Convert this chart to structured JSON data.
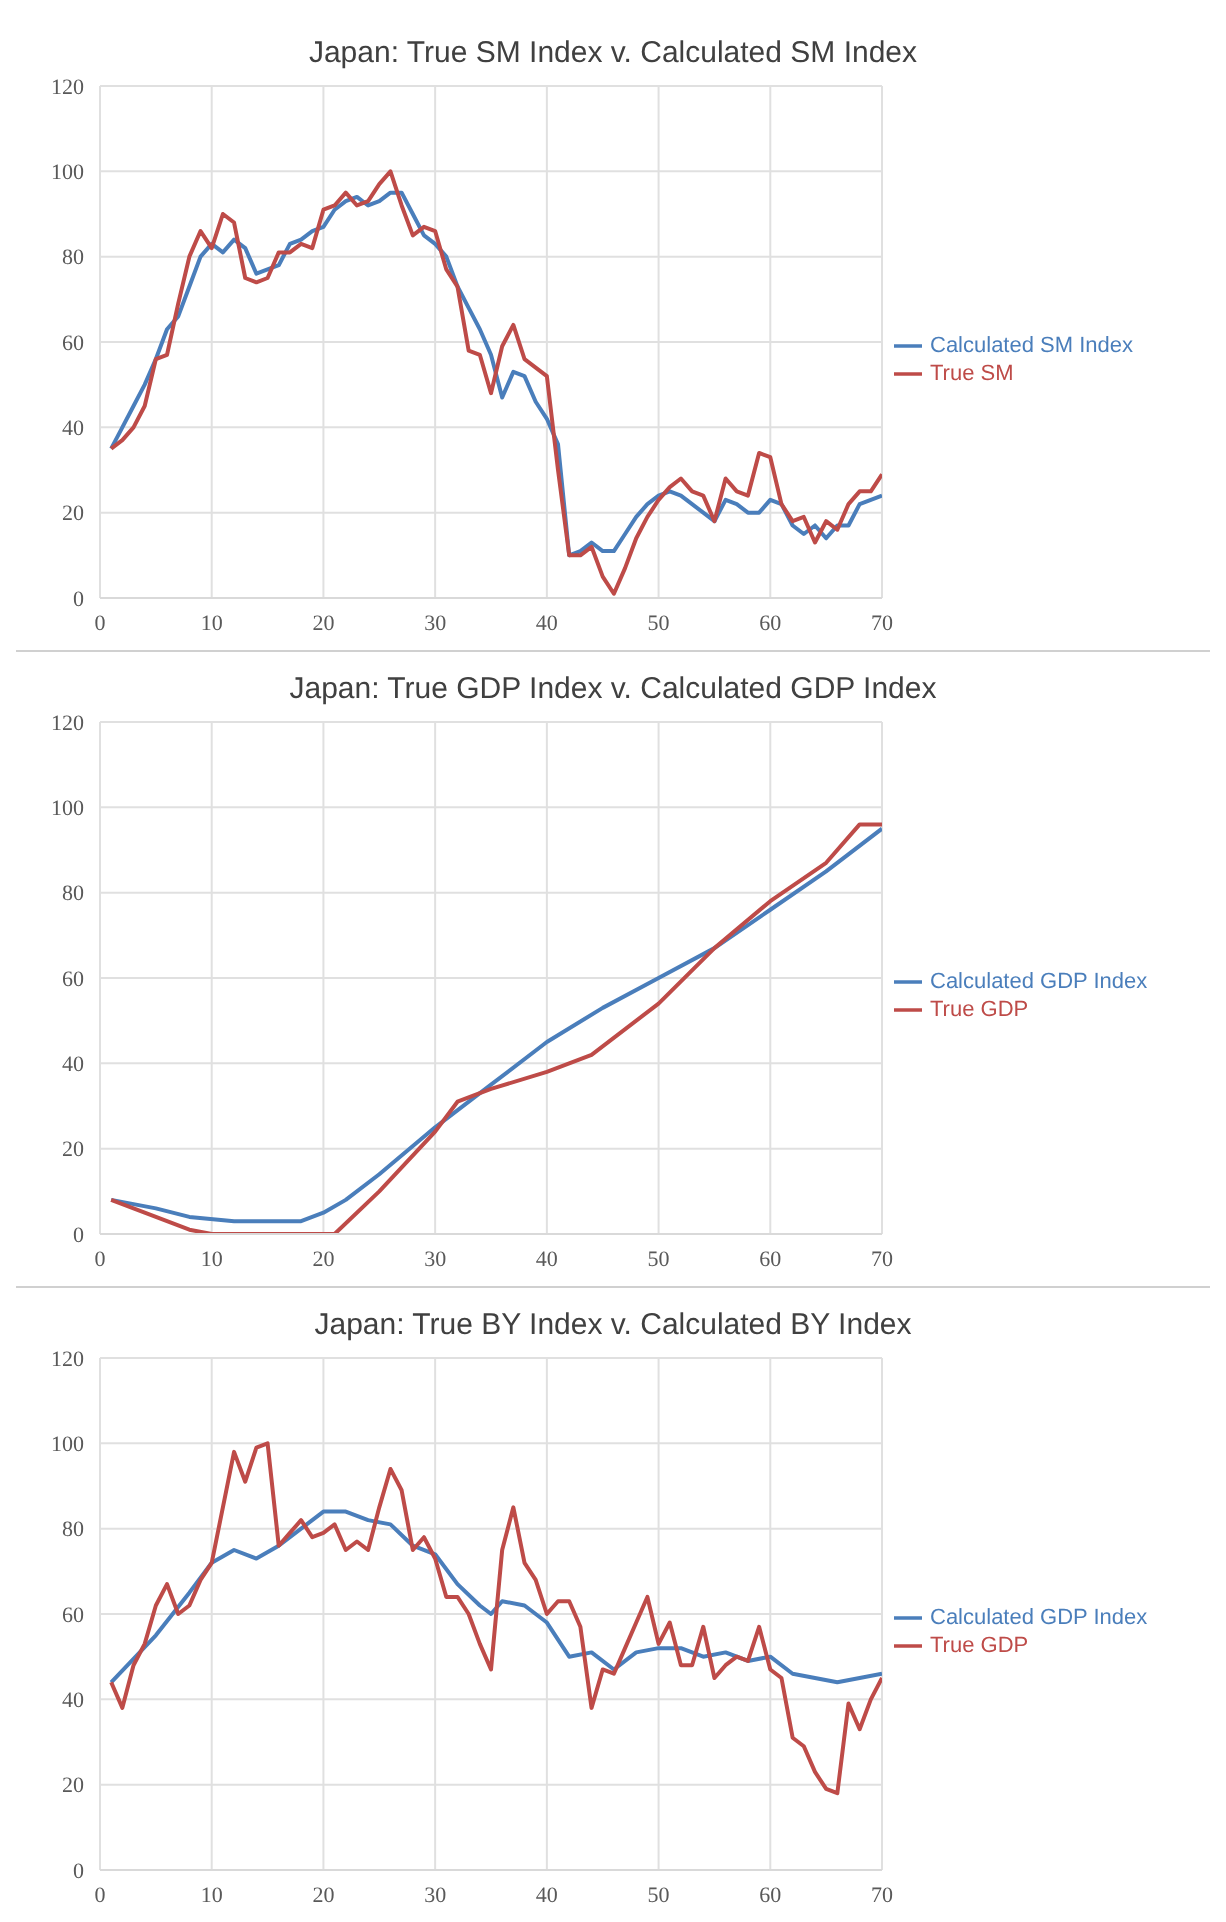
{
  "chart_data": [
    {
      "type": "line",
      "title": "Japan: True SM Index v. Calculated SM Index",
      "xlim": [
        0,
        70
      ],
      "xticks": [
        0,
        10,
        20,
        30,
        40,
        50,
        60,
        70
      ],
      "ylim": [
        0,
        120
      ],
      "yticks": [
        0,
        20,
        40,
        60,
        80,
        100,
        120
      ],
      "grid": true,
      "legend": "right",
      "marker": "none",
      "line_style": "solid",
      "x": [
        1,
        2,
        3,
        4,
        5,
        6,
        7,
        8,
        9,
        10,
        11,
        12,
        13,
        14,
        15,
        16,
        17,
        18,
        19,
        20,
        21,
        22,
        23,
        24,
        25,
        26,
        27,
        28,
        29,
        30,
        31,
        32,
        33,
        34,
        35,
        36,
        37,
        38,
        39,
        40,
        41,
        42,
        43,
        44,
        45,
        46,
        47,
        48,
        49,
        50,
        51,
        52,
        53,
        54,
        55,
        56,
        57,
        58,
        59,
        60,
        61,
        62,
        63,
        64,
        65,
        66,
        67,
        68,
        69,
        70
      ],
      "series": [
        {
          "name": "Calculated SM Index",
          "color": "#4a7ebb",
          "values": [
            35,
            40,
            45,
            50,
            56,
            63,
            66,
            73,
            80,
            83,
            81,
            84,
            82,
            76,
            77,
            78,
            83,
            84,
            86,
            87,
            91,
            93,
            94,
            92,
            93,
            95,
            95,
            90,
            85,
            83,
            80,
            73,
            68,
            63,
            57,
            47,
            53,
            52,
            46,
            42,
            36,
            10,
            11,
            13,
            11,
            11,
            15,
            19,
            22,
            24,
            25,
            24,
            22,
            20,
            18,
            23,
            22,
            20,
            20,
            23,
            22,
            17,
            15,
            17,
            14,
            17,
            17,
            22,
            23,
            24
          ]
        },
        {
          "name": "True SM",
          "color": "#be4b48",
          "values": [
            35,
            37,
            40,
            45,
            56,
            57,
            69,
            80,
            86,
            82,
            90,
            88,
            75,
            74,
            75,
            81,
            81,
            83,
            82,
            91,
            92,
            95,
            92,
            93,
            97,
            100,
            92,
            85,
            87,
            86,
            77,
            73,
            58,
            57,
            48,
            59,
            64,
            56,
            54,
            52,
            30,
            10,
            10,
            12,
            5,
            1,
            7,
            14,
            19,
            23,
            26,
            28,
            25,
            24,
            18,
            28,
            25,
            24,
            34,
            33,
            22,
            18,
            19,
            13,
            18,
            16,
            22,
            25,
            25,
            29
          ]
        }
      ]
    },
    {
      "type": "line",
      "title": "Japan: True GDP Index v. Calculated GDP Index",
      "xlim": [
        0,
        70
      ],
      "xticks": [
        0,
        10,
        20,
        30,
        40,
        50,
        60,
        70
      ],
      "ylim": [
        0,
        120
      ],
      "yticks": [
        0,
        20,
        40,
        60,
        80,
        100,
        120
      ],
      "grid": true,
      "legend": "right",
      "marker": "none",
      "line_style": "solid",
      "series": [
        {
          "name": "Calculated GDP Index",
          "color": "#4a7ebb",
          "x": [
            1,
            5,
            8,
            12,
            15,
            18,
            20,
            22,
            25,
            30,
            35,
            40,
            45,
            50,
            55,
            60,
            65,
            70
          ],
          "values": [
            8,
            6,
            4,
            3,
            3,
            3,
            5,
            8,
            14,
            25,
            35,
            45,
            53,
            60,
            67,
            76,
            85,
            95
          ]
        },
        {
          "name": "True GDP",
          "color": "#be4b48",
          "x": [
            1,
            4,
            8,
            10,
            15,
            20,
            21,
            25,
            30,
            32,
            35,
            40,
            44,
            50,
            55,
            60,
            65,
            68,
            70
          ],
          "values": [
            8,
            5,
            1,
            0,
            0,
            0,
            0,
            10,
            24,
            31,
            34,
            38,
            42,
            54,
            67,
            78,
            87,
            96,
            96
          ]
        }
      ]
    },
    {
      "type": "line",
      "title": "Japan: True BY Index v. Calculated BY Index",
      "xlim": [
        0,
        70
      ],
      "xticks": [
        0,
        10,
        20,
        30,
        40,
        50,
        60,
        70
      ],
      "ylim": [
        0,
        120
      ],
      "yticks": [
        0,
        20,
        40,
        60,
        80,
        100,
        120
      ],
      "grid": true,
      "legend": "right",
      "marker": "none",
      "line_style": "solid",
      "series": [
        {
          "name": "Calculated GDP  Index",
          "color": "#4a7ebb",
          "x": [
            1,
            5,
            8,
            10,
            12,
            14,
            16,
            18,
            20,
            22,
            24,
            26,
            28,
            30,
            32,
            34,
            35,
            36,
            38,
            40,
            42,
            44,
            46,
            48,
            50,
            52,
            54,
            56,
            58,
            60,
            62,
            64,
            66,
            68,
            70
          ],
          "values": [
            44,
            55,
            65,
            72,
            75,
            73,
            76,
            80,
            84,
            84,
            82,
            81,
            76,
            74,
            67,
            62,
            60,
            63,
            62,
            58,
            50,
            51,
            47,
            51,
            52,
            52,
            50,
            51,
            49,
            50,
            46,
            45,
            44,
            45,
            46
          ]
        },
        {
          "name": "True GDP",
          "color": "#be4b48",
          "x": [
            1,
            2,
            3,
            4,
            5,
            6,
            7,
            8,
            9,
            10,
            11,
            12,
            13,
            14,
            15,
            16,
            17,
            18,
            19,
            20,
            21,
            22,
            23,
            24,
            25,
            26,
            27,
            28,
            29,
            30,
            31,
            32,
            33,
            34,
            35,
            36,
            37,
            38,
            39,
            40,
            41,
            42,
            43,
            44,
            45,
            46,
            47,
            48,
            49,
            50,
            51,
            52,
            53,
            54,
            55,
            56,
            57,
            58,
            59,
            60,
            61,
            62,
            63,
            64,
            65,
            66,
            67,
            68,
            69,
            70
          ],
          "values": [
            44,
            38,
            48,
            53,
            62,
            67,
            60,
            62,
            68,
            72,
            85,
            98,
            91,
            99,
            100,
            76,
            79,
            82,
            78,
            79,
            81,
            75,
            77,
            75,
            85,
            94,
            89,
            75,
            78,
            73,
            64,
            64,
            60,
            53,
            47,
            75,
            85,
            72,
            68,
            60,
            63,
            63,
            57,
            38,
            47,
            46,
            52,
            58,
            64,
            53,
            58,
            48,
            48,
            57,
            45,
            48,
            50,
            49,
            57,
            47,
            45,
            31,
            29,
            23,
            19,
            18,
            39,
            33,
            40,
            45
          ]
        }
      ]
    }
  ]
}
